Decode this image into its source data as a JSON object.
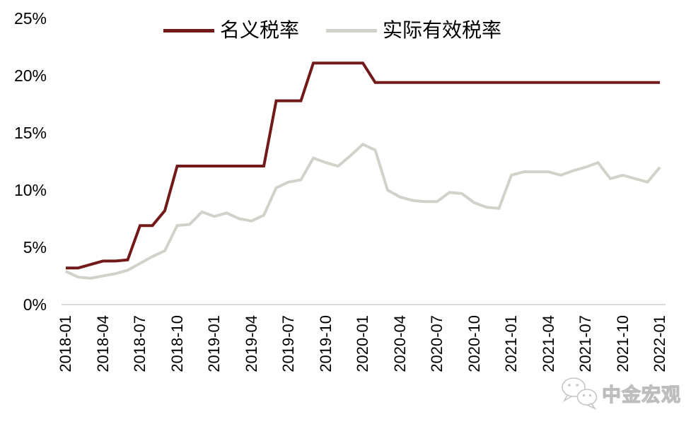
{
  "page": {
    "background": "#ffffff"
  },
  "colors": {
    "nominal_line": "#721919",
    "effective_line": "#d2d2ca",
    "axis_line": "#d9d9d9",
    "label_text": "#000000",
    "watermark_outline": "#bdbdbd"
  },
  "legend": {
    "items": [
      {
        "label": "名义税率",
        "color": "#721919"
      },
      {
        "label": "实际有效税率",
        "color": "#d2d2ca"
      }
    ]
  },
  "watermark": {
    "text": "中金宏观",
    "icon": "wechat-icon"
  },
  "chart_data": {
    "type": "line",
    "title": "",
    "xlabel": "",
    "ylabel": "",
    "ylim": [
      0,
      25
    ],
    "grid": false,
    "legend_position": "top-center",
    "y_tick_labels": [
      "0%",
      "5%",
      "10%",
      "15%",
      "20%",
      "25%"
    ],
    "x": [
      "2018-01",
      "2018-02",
      "2018-03",
      "2018-04",
      "2018-05",
      "2018-06",
      "2018-07",
      "2018-08",
      "2018-09",
      "2018-10",
      "2018-11",
      "2018-12",
      "2019-01",
      "2019-02",
      "2019-03",
      "2019-04",
      "2019-05",
      "2019-06",
      "2019-07",
      "2019-08",
      "2019-09",
      "2019-10",
      "2019-11",
      "2019-12",
      "2020-01",
      "2020-02",
      "2020-03",
      "2020-04",
      "2020-05",
      "2020-06",
      "2020-07",
      "2020-08",
      "2020-09",
      "2020-10",
      "2020-11",
      "2020-12",
      "2021-01",
      "2021-02",
      "2021-03",
      "2021-04",
      "2021-05",
      "2021-06",
      "2021-07",
      "2021-08",
      "2021-09",
      "2021-10",
      "2021-11",
      "2021-12",
      "2022-01"
    ],
    "x_tick_labels": [
      "2018-01",
      "2018-04",
      "2018-07",
      "2018-10",
      "2019-01",
      "2019-04",
      "2019-07",
      "2019-10",
      "2020-01",
      "2020-04",
      "2020-07",
      "2020-10",
      "2021-01",
      "2021-04",
      "2021-07",
      "2021-10",
      "2022-01"
    ],
    "series": [
      {
        "name": "名义税率",
        "color": "#721919",
        "values": [
          3.2,
          3.2,
          3.5,
          3.8,
          3.8,
          3.9,
          6.9,
          6.9,
          8.2,
          12.1,
          12.1,
          12.1,
          12.1,
          12.1,
          12.1,
          12.1,
          12.1,
          17.8,
          17.8,
          17.8,
          21.1,
          21.1,
          21.1,
          21.1,
          21.1,
          19.4,
          19.4,
          19.4,
          19.4,
          19.4,
          19.4,
          19.4,
          19.4,
          19.4,
          19.4,
          19.4,
          19.4,
          19.4,
          19.4,
          19.4,
          19.4,
          19.4,
          19.4,
          19.4,
          19.4,
          19.4,
          19.4,
          19.4,
          19.4
        ]
      },
      {
        "name": "实际有效税率",
        "color": "#d2d2ca",
        "values": [
          2.9,
          2.4,
          2.3,
          2.5,
          2.7,
          3.0,
          3.6,
          4.2,
          4.7,
          6.9,
          7.0,
          8.1,
          7.7,
          8.0,
          7.5,
          7.3,
          7.8,
          10.2,
          10.7,
          10.9,
          12.8,
          12.4,
          12.1,
          13.0,
          14.0,
          13.5,
          10.0,
          9.4,
          9.1,
          9.0,
          9.0,
          9.8,
          9.7,
          8.9,
          8.5,
          8.4,
          11.3,
          11.6,
          11.6,
          11.6,
          11.3,
          11.7,
          12.0,
          12.4,
          11.0,
          11.3,
          11.0,
          10.7,
          12.0
        ]
      }
    ]
  }
}
